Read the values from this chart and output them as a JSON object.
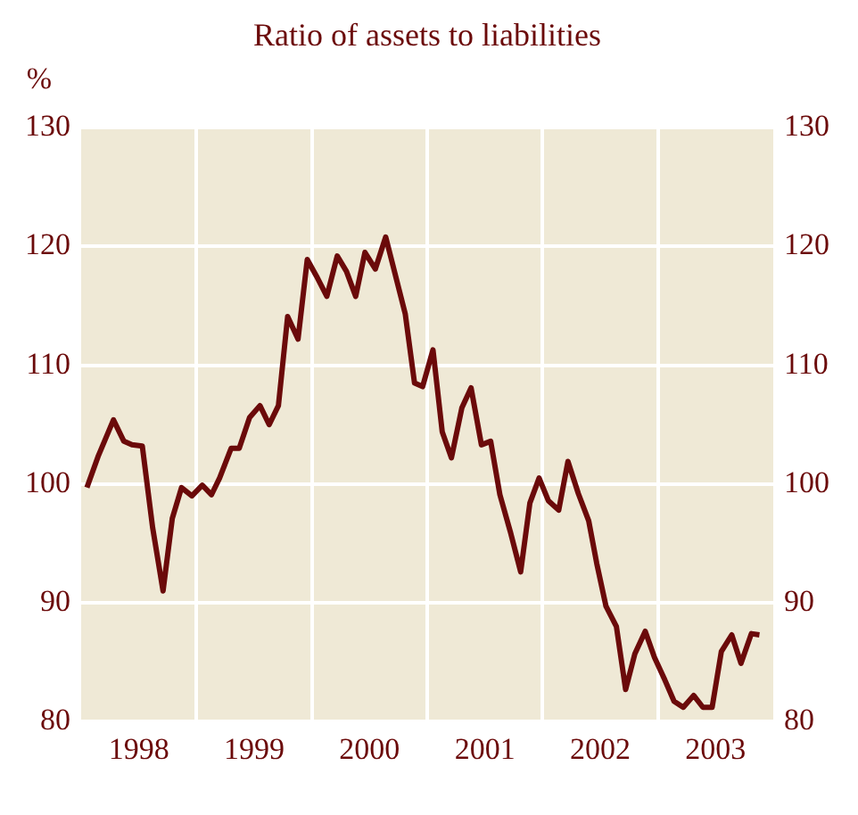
{
  "chart_data": {
    "type": "line",
    "title": "Ratio of assets to liabilities",
    "ylabel": "%",
    "x": [
      1998.05,
      1998.15,
      1998.28,
      1998.37,
      1998.44,
      1998.53,
      1998.62,
      1998.71,
      1998.79,
      1998.87,
      1998.96,
      1999.05,
      1999.13,
      1999.2,
      1999.3,
      1999.37,
      1999.46,
      1999.55,
      1999.63,
      1999.71,
      1999.79,
      1999.88,
      1999.96,
      2000.04,
      2000.13,
      2000.22,
      2000.3,
      2000.38,
      2000.46,
      2000.55,
      2000.64,
      2000.81,
      2000.89,
      2000.96,
      2001.05,
      2001.13,
      2001.21,
      2001.3,
      2001.38,
      2001.47,
      2001.55,
      2001.63,
      2001.72,
      2001.81,
      2001.89,
      2001.97,
      2002.05,
      2002.14,
      2002.22,
      2002.31,
      2002.4,
      2002.47,
      2002.55,
      2002.64,
      2002.72,
      2002.8,
      2002.89,
      2002.97,
      2003.06,
      2003.14,
      2003.22,
      2003.31,
      2003.39,
      2003.47,
      2003.55,
      2003.64,
      2003.72,
      2003.81,
      2003.88
    ],
    "series": [
      {
        "color": "#6b0a0a",
        "values": [
          99.7,
          102.4,
          105.4,
          103.6,
          103.3,
          103.2,
          96.3,
          91.0,
          97.1,
          99.7,
          99.0,
          99.9,
          99.1,
          100.5,
          103.0,
          103.0,
          105.6,
          106.6,
          105.0,
          106.6,
          114.1,
          112.2,
          118.9,
          117.5,
          115.8,
          119.2,
          117.9,
          115.8,
          119.5,
          118.1,
          120.8,
          114.3,
          108.5,
          108.2,
          111.3,
          104.4,
          102.2,
          106.4,
          108.1,
          103.3,
          103.6,
          99.1,
          96.0,
          92.6,
          98.4,
          100.5,
          98.6,
          97.8,
          101.9,
          99.2,
          96.9,
          93.3,
          89.7,
          88.0,
          82.7,
          85.7,
          87.6,
          85.4,
          83.5,
          81.7,
          81.2,
          82.2,
          81.2,
          81.2,
          85.9,
          87.3,
          84.9,
          87.4,
          87.3
        ]
      }
    ],
    "xlim": [
      1998,
      2004
    ],
    "xticks": [
      {
        "value": 1998.5,
        "label": "1998"
      },
      {
        "value": 1999,
        "label": null
      },
      {
        "value": 1999.5,
        "label": "1999"
      },
      {
        "value": 2000,
        "label": null
      },
      {
        "value": 2000.5,
        "label": "2000"
      },
      {
        "value": 2001,
        "label": null
      },
      {
        "value": 2001.5,
        "label": "2001"
      },
      {
        "value": 2002,
        "label": null
      },
      {
        "value": 2002.5,
        "label": "2002"
      },
      {
        "value": 2003,
        "label": null
      },
      {
        "value": 2003.5,
        "label": "2003"
      }
    ],
    "ylim": [
      80,
      130
    ],
    "yticks": [
      80,
      90,
      100,
      110,
      120,
      130
    ],
    "y2lim": [
      80,
      130
    ],
    "y2ticks": [
      80,
      90,
      100,
      110,
      120,
      130
    ],
    "grid": true
  }
}
